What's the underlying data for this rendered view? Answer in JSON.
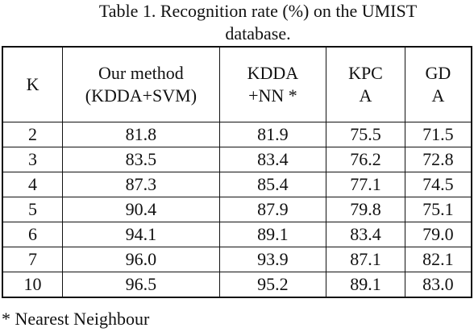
{
  "caption": [
    "Table 1. Recognition rate (%) on the UMIST",
    "database."
  ],
  "table": {
    "header": [
      [
        "K"
      ],
      [
        "Our method",
        "(KDDA+SVM)"
      ],
      [
        "KDDA",
        "+NN *"
      ],
      [
        "KPC",
        "A"
      ],
      [
        "GD",
        "A"
      ]
    ],
    "rows": [
      [
        "2",
        "81.8",
        "81.9",
        "75.5",
        "71.5"
      ],
      [
        "3",
        "83.5",
        "83.4",
        "76.2",
        "72.8"
      ],
      [
        "4",
        "87.3",
        "85.4",
        "77.1",
        "74.5"
      ],
      [
        "5",
        "90.4",
        "87.9",
        "79.8",
        "75.1"
      ],
      [
        "6",
        "94.1",
        "89.1",
        "83.4",
        "79.0"
      ],
      [
        "7",
        "96.0",
        "93.9",
        "87.1",
        "82.1"
      ],
      [
        "10",
        "96.5",
        "95.2",
        "89.1",
        "83.0"
      ]
    ]
  },
  "footnote": "* Nearest Neighbour"
}
